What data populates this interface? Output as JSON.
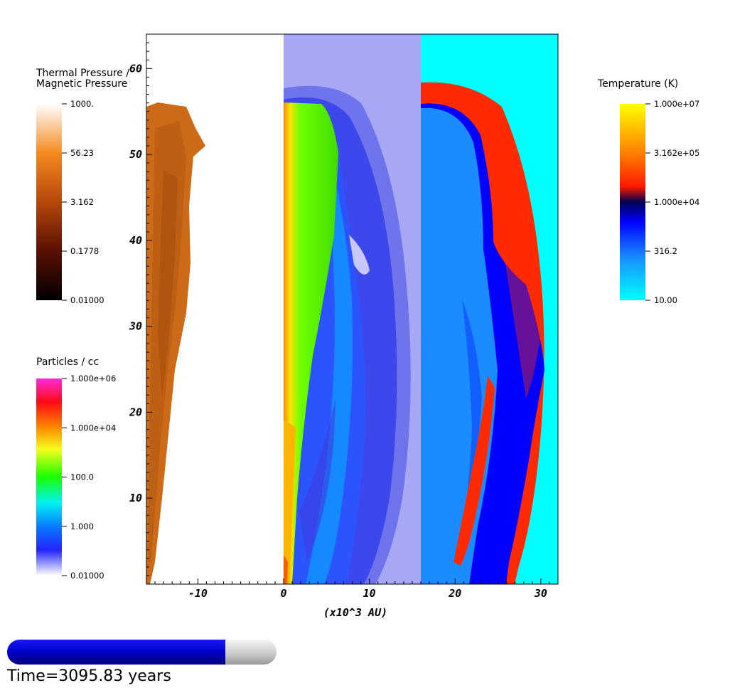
{
  "chart_data": {
    "type": "heatmap",
    "title": "",
    "xlabel": "(x10^3 AU)",
    "ylabel": "",
    "xlim": [
      -16,
      32
    ],
    "ylim": [
      0,
      64
    ],
    "x_ticks": [
      -10,
      0,
      10,
      20,
      30
    ],
    "y_ticks": [
      10,
      20,
      30,
      40,
      50,
      60
    ],
    "x_tick_labels": [
      "-10",
      "0",
      "10",
      "20",
      "30"
    ],
    "y_tick_labels": [
      "10",
      "20",
      "30",
      "40",
      "50",
      "60"
    ],
    "grid": false,
    "panels": [
      {
        "field": "Thermal Pressure / Magnetic Pressure",
        "x_range": [
          -16,
          0
        ]
      },
      {
        "field": "Particles / cc",
        "x_range": [
          0,
          16
        ]
      },
      {
        "field": "Temperature (K)",
        "x_range": [
          16,
          32
        ]
      }
    ],
    "colorbars": [
      {
        "title_lines": [
          "Thermal Pressure /",
          "Magnetic Pressure"
        ],
        "placement": "left-top",
        "scale": "log",
        "ticks": [
          "1000.",
          "56.23",
          "3.162",
          "0.1778",
          "0.01000"
        ],
        "colors": [
          "#ffffff",
          "#f58a1f",
          "#b5480c",
          "#5a0f02",
          "#000000"
        ]
      },
      {
        "title_lines": [
          "Particles / cc"
        ],
        "placement": "left-bottom",
        "scale": "log",
        "ticks": [
          "1.000e+06",
          "1.000e+04",
          "100.0",
          "1.000",
          "0.01000"
        ],
        "colors": [
          "#ff2ad8",
          "#ff0a14",
          "#ff8a00",
          "#f4ff1a",
          "#19ff00",
          "#00f2f2",
          "#0a74ff",
          "#2424ff",
          "#ffffff"
        ]
      },
      {
        "title_lines": [
          "Temperature (K)"
        ],
        "placement": "right-top",
        "scale": "log",
        "ticks": [
          "1.000e+07",
          "3.162e+05",
          "1.000e+04",
          "316.2",
          "10.00"
        ],
        "colors": [
          "#ffff00",
          "#ff8000",
          "#ff1a00",
          "#000050",
          "#0000ff",
          "#1a8cff",
          "#00ffff"
        ]
      }
    ]
  },
  "time_bar": {
    "label": "Time=3095.83 years",
    "progress": 0.81,
    "fill_color": "#0000d8",
    "track_color": "#d6d6d6"
  }
}
